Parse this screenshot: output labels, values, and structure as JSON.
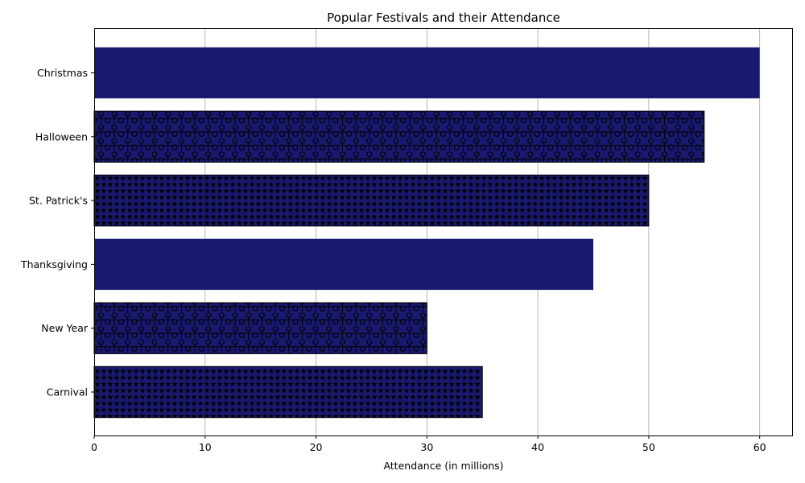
{
  "chart_data": {
    "type": "bar",
    "orientation": "horizontal",
    "title": "Popular Festivals and their Attendance",
    "xlabel": "Attendance (in millions)",
    "ylabel": "",
    "categories": [
      "Christmas",
      "Halloween",
      "St. Patrick's",
      "Thanksgiving",
      "New Year",
      "Carnival"
    ],
    "values": [
      60,
      55,
      50,
      45,
      30,
      35
    ],
    "hatch": [
      "none",
      "circles",
      "stars",
      "none",
      "circles",
      "stars"
    ],
    "xlim": [
      0,
      63
    ],
    "xticks": [
      0,
      10,
      20,
      30,
      40,
      50,
      60
    ],
    "grid": "x",
    "legend": "none",
    "bar_color": "#191970",
    "edge_color": "#000000",
    "grid_color": "#b0b0b0"
  }
}
